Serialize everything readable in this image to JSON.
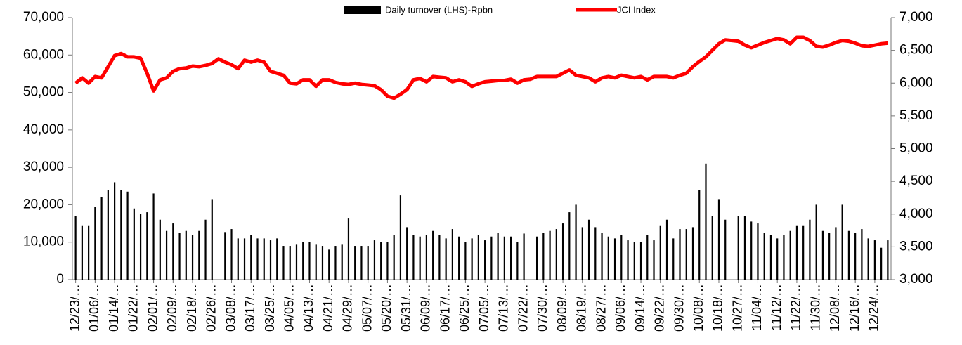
{
  "chart_data": {
    "type": "bar",
    "categories": [
      "12/23/…",
      null,
      null,
      "01/06/…",
      null,
      null,
      "01/14/…",
      null,
      null,
      "01/22/…",
      null,
      null,
      "02/01/…",
      null,
      null,
      "02/09/…",
      null,
      null,
      "02/18/…",
      null,
      null,
      "02/26/…",
      null,
      null,
      "03/08/…",
      null,
      null,
      "03/17/…",
      null,
      null,
      "03/25/…",
      null,
      null,
      "04/05/…",
      null,
      null,
      "04/13/…",
      null,
      null,
      "04/21/…",
      null,
      null,
      "04/29/…",
      null,
      null,
      "05/07/…",
      null,
      null,
      "05/20/…",
      null,
      null,
      "05/31/…",
      null,
      null,
      "06/09/…",
      null,
      null,
      "06/17/…",
      null,
      null,
      "06/25/…",
      null,
      null,
      "07/05/…",
      null,
      null,
      "07/13/…",
      null,
      null,
      "07/22/…",
      null,
      null,
      "07/30/…",
      null,
      null,
      "08/09/…",
      null,
      null,
      "08/19/…",
      null,
      null,
      "08/27/…",
      null,
      null,
      "09/06/…",
      null,
      null,
      "09/14/…",
      null,
      null,
      "09/22/…",
      null,
      null,
      "09/30/…",
      null,
      null,
      "10/08/…",
      null,
      null,
      "10/18/…",
      null,
      null,
      "10/27/…",
      null,
      null,
      "11/04/…",
      null,
      null,
      "11/12/…",
      null,
      null,
      "11/22/…",
      null,
      null,
      "11/30/…",
      null,
      null,
      "12/08/…",
      null,
      null,
      "12/16/…",
      null,
      null,
      "12/24/…",
      null,
      null
    ],
    "series": [
      {
        "name": "Daily turnover (LHS)-Rpbn",
        "type": "bar",
        "color": "#000000",
        "axis": "y",
        "values": [
          17000,
          14500,
          14500,
          19500,
          22000,
          24000,
          26000,
          24000,
          23500,
          19000,
          17500,
          18000,
          23000,
          16000,
          13000,
          15000,
          12500,
          13000,
          12000,
          13000,
          16000,
          21500,
          null,
          12700,
          13500,
          11000,
          11000,
          12000,
          11000,
          11000,
          10500,
          11000,
          9000,
          9000,
          9500,
          10000,
          10000,
          9500,
          9000,
          8000,
          9000,
          9500,
          16500,
          9000,
          9000,
          9000,
          10500,
          10000,
          10000,
          12000,
          22500,
          14000,
          12000,
          11500,
          12000,
          13000,
          12000,
          11000,
          13500,
          11500,
          10000,
          11000,
          12000,
          10500,
          11500,
          12500,
          11500,
          11500,
          10000,
          12300,
          null,
          11500,
          12500,
          13000,
          13500,
          15000,
          18000,
          20000,
          14000,
          16000,
          14000,
          12500,
          11500,
          11000,
          12000,
          10500,
          10000,
          10000,
          12000,
          10500,
          14500,
          16000,
          11000,
          13500,
          13500,
          14000,
          24000,
          31000,
          17000,
          21500,
          16000,
          null,
          17000,
          17000,
          15500,
          15000,
          12500,
          12000,
          11000,
          12000,
          13000,
          14500,
          14500,
          16000,
          20000,
          13000,
          12500,
          14000,
          20000,
          13000,
          12500,
          13500,
          11000,
          10500,
          8500,
          10500
        ]
      },
      {
        "name": "JCI Index",
        "type": "line",
        "color": "#ff0000",
        "axis": "y2",
        "values": [
          6000,
          6080,
          6000,
          6100,
          6080,
          6250,
          6420,
          6450,
          6400,
          6400,
          6380,
          6150,
          5880,
          6050,
          6080,
          6180,
          6220,
          6230,
          6260,
          6250,
          6270,
          6300,
          6370,
          6320,
          6280,
          6220,
          6350,
          6320,
          6350,
          6320,
          6180,
          6150,
          6120,
          6000,
          5990,
          6050,
          6050,
          5950,
          6050,
          6050,
          6010,
          5990,
          5980,
          6000,
          5980,
          5970,
          5960,
          5900,
          5800,
          5770,
          5830,
          5900,
          6050,
          6070,
          6020,
          6100,
          6090,
          6080,
          6020,
          6050,
          6020,
          5950,
          5990,
          6020,
          6030,
          6040,
          6040,
          6060,
          6000,
          6050,
          6060,
          6100,
          6100,
          6100,
          6100,
          6150,
          6200,
          6120,
          6100,
          6080,
          6020,
          6080,
          6100,
          6080,
          6120,
          6100,
          6080,
          6100,
          6050,
          6100,
          6100,
          6100,
          6080,
          6120,
          6150,
          6250,
          6330,
          6400,
          6500,
          6600,
          6660,
          6650,
          6640,
          6580,
          6540,
          6580,
          6620,
          6650,
          6680,
          6660,
          6600,
          6700,
          6700,
          6650,
          6560,
          6550,
          6580,
          6620,
          6650,
          6640,
          6610,
          6570,
          6560,
          6580,
          6600,
          6610
        ]
      }
    ],
    "ylim": [
      0,
      70000
    ],
    "yticks": [
      0,
      {
        "value": 10000,
        "label": "10,000"
      },
      {
        "value": 20000,
        "label": "20,000"
      },
      {
        "value": 30000,
        "label": "30,000"
      },
      {
        "value": 40000,
        "label": "40,000"
      },
      {
        "value": 50000,
        "label": "50,000"
      },
      {
        "value": 60000,
        "label": "60,000"
      },
      {
        "value": 70000,
        "label": "70,000"
      }
    ],
    "y2lim": [
      3000,
      7000
    ],
    "y2ticks": [
      {
        "value": 3000,
        "label": "3,000"
      },
      {
        "value": 3500,
        "label": "3,500"
      },
      {
        "value": 4000,
        "label": "4,000"
      },
      {
        "value": 4500,
        "label": "4,500"
      },
      {
        "value": 5000,
        "label": "5,000"
      },
      {
        "value": 5500,
        "label": "5,500"
      },
      {
        "value": 6000,
        "label": "6,000"
      },
      {
        "value": 6500,
        "label": "6,500"
      },
      {
        "value": 7000,
        "label": "7,000"
      }
    ],
    "legend": "top",
    "grid": false
  }
}
